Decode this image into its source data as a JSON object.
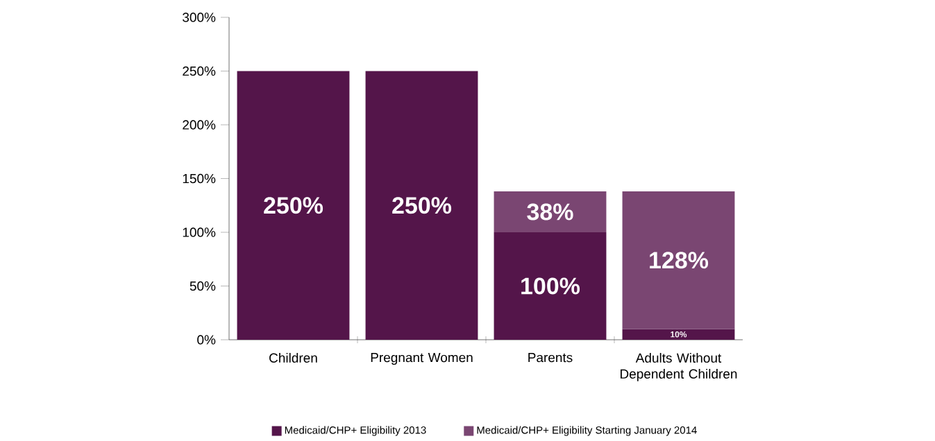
{
  "chart_data": {
    "type": "bar",
    "stacked": true,
    "categories": [
      "Children",
      "Pregnant Women",
      "Parents",
      "Adults Without Dependent Children"
    ],
    "series": [
      {
        "name": "Medicaid/CHP+ Eligibility 2013",
        "color": "#54154a",
        "values": [
          250,
          250,
          100,
          10
        ],
        "value_labels": [
          "250%",
          "250%",
          "100%",
          "10%"
        ]
      },
      {
        "name": "Medicaid/CHP+ Eligibility Starting January 2014",
        "color": "#7a4672",
        "values": [
          null,
          null,
          38,
          128
        ],
        "value_labels": [
          null,
          null,
          "38%",
          "128%"
        ]
      }
    ],
    "ylim": [
      0,
      300
    ],
    "yticks": [
      {
        "value": 0,
        "label": "0%"
      },
      {
        "value": 50,
        "label": "50%"
      },
      {
        "value": 100,
        "label": "100%"
      },
      {
        "value": 150,
        "label": "150%"
      },
      {
        "value": 200,
        "label": "200%"
      },
      {
        "value": 250,
        "label": "250%"
      },
      {
        "value": 300,
        "label": "300%"
      }
    ],
    "grid": false,
    "legend": "bottom"
  }
}
